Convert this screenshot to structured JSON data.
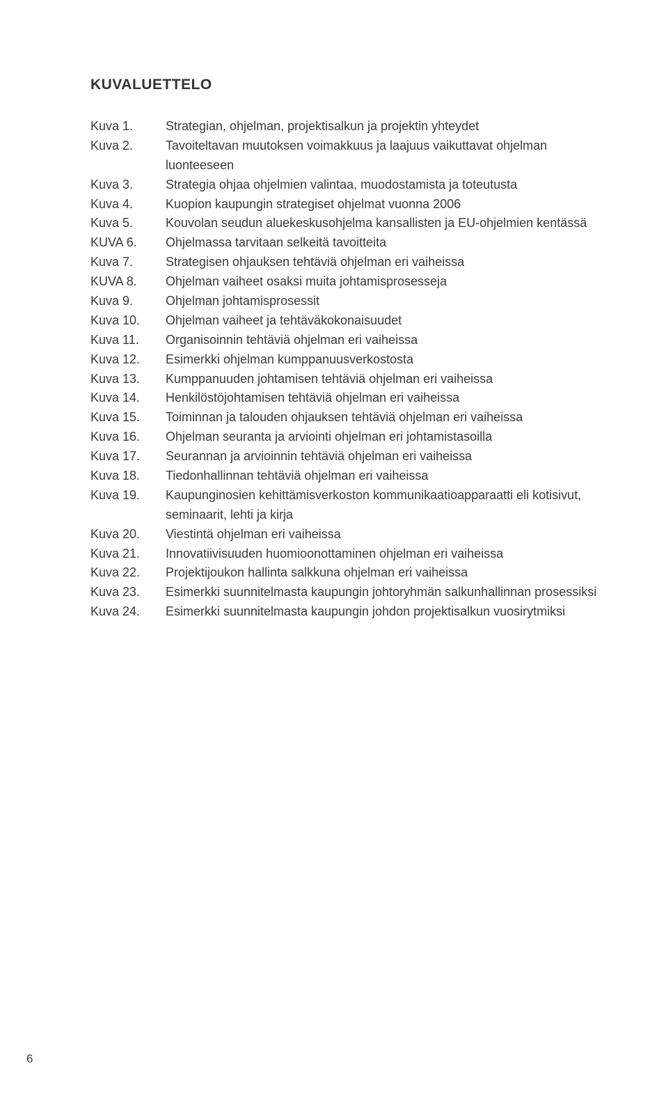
{
  "heading": "KUVALUETTELO",
  "page_number": "6",
  "text_color": "#333333",
  "background_color": "#ffffff",
  "heading_fontsize": 21,
  "body_fontsize": 18,
  "entries": [
    {
      "label": "Kuva 1.",
      "desc": "Strategian, ohjelman, projektisalkun ja projektin yhteydet"
    },
    {
      "label": "Kuva 2.",
      "desc": "Tavoiteltavan muutoksen voimakkuus ja laajuus vaikuttavat ohjelman luonteeseen"
    },
    {
      "label": "Kuva 3.",
      "desc": "Strategia ohjaa ohjelmien valintaa, muodostamista ja toteutusta"
    },
    {
      "label": "Kuva 4.",
      "desc": "Kuopion kaupungin strategiset ohjelmat vuonna 2006"
    },
    {
      "label": "Kuva 5.",
      "desc": "Kouvolan seudun aluekeskusohjelma kansallisten ja EU-ohjelmien kentässä"
    },
    {
      "label": "KUVA 6.",
      "desc": "Ohjelmassa tarvitaan selkeitä tavoitteita"
    },
    {
      "label": "Kuva 7.",
      "desc": "Strategisen ohjauksen tehtäviä ohjelman eri vaiheissa"
    },
    {
      "label": "KUVA 8.",
      "desc": "Ohjelman vaiheet osaksi muita johtamisprosesseja"
    },
    {
      "label": "Kuva 9.",
      "desc": "Ohjelman johtamisprosessit"
    },
    {
      "label": "Kuva 10.",
      "desc": "Ohjelman vaiheet ja tehtäväkokonaisuudet"
    },
    {
      "label": "Kuva 11.",
      "desc": "Organisoinnin tehtäviä ohjelman eri vaiheissa"
    },
    {
      "label": "Kuva 12.",
      "desc": "Esimerkki ohjelman kumppanuusverkostosta"
    },
    {
      "label": "Kuva 13.",
      "desc": "Kumppanuuden johtamisen tehtäviä ohjelman eri vaiheissa"
    },
    {
      "label": "Kuva 14.",
      "desc": "Henkilöstöjohtamisen tehtäviä ohjelman eri vaiheissa"
    },
    {
      "label": "Kuva 15.",
      "desc": "Toiminnan ja talouden ohjauksen tehtäviä ohjelman eri vaiheissa"
    },
    {
      "label": "Kuva 16.",
      "desc": "Ohjelman seuranta ja arviointi ohjelman eri johtamistasoilla"
    },
    {
      "label": "Kuva 17.",
      "desc": "Seurannan ja arvioinnin tehtäviä ohjelman eri vaiheissa"
    },
    {
      "label": "Kuva 18.",
      "desc": "Tiedonhallinnan tehtäviä ohjelman eri vaiheissa"
    },
    {
      "label": "Kuva 19.",
      "desc": "Kaupunginosien kehittämisverkoston kommunikaatioapparaatti eli kotisivut, seminaarit, lehti ja kirja"
    },
    {
      "label": "Kuva 20.",
      "desc": "Viestintä ohjelman eri vaiheissa"
    },
    {
      "label": "Kuva 21.",
      "desc": "Innovatiivisuuden huomioonottaminen ohjelman eri vaiheissa"
    },
    {
      "label": "Kuva 22.",
      "desc": "Projektijoukon hallinta salkkuna ohjelman eri vaiheissa"
    },
    {
      "label": "Kuva 23.",
      "desc": "Esimerkki suunnitelmasta kaupungin johtoryhmän salkunhallinnan prosessiksi"
    },
    {
      "label": "Kuva 24.",
      "desc": "Esimerkki suunnitelmasta kaupungin johdon projektisalkun vuosirytmiksi"
    }
  ]
}
